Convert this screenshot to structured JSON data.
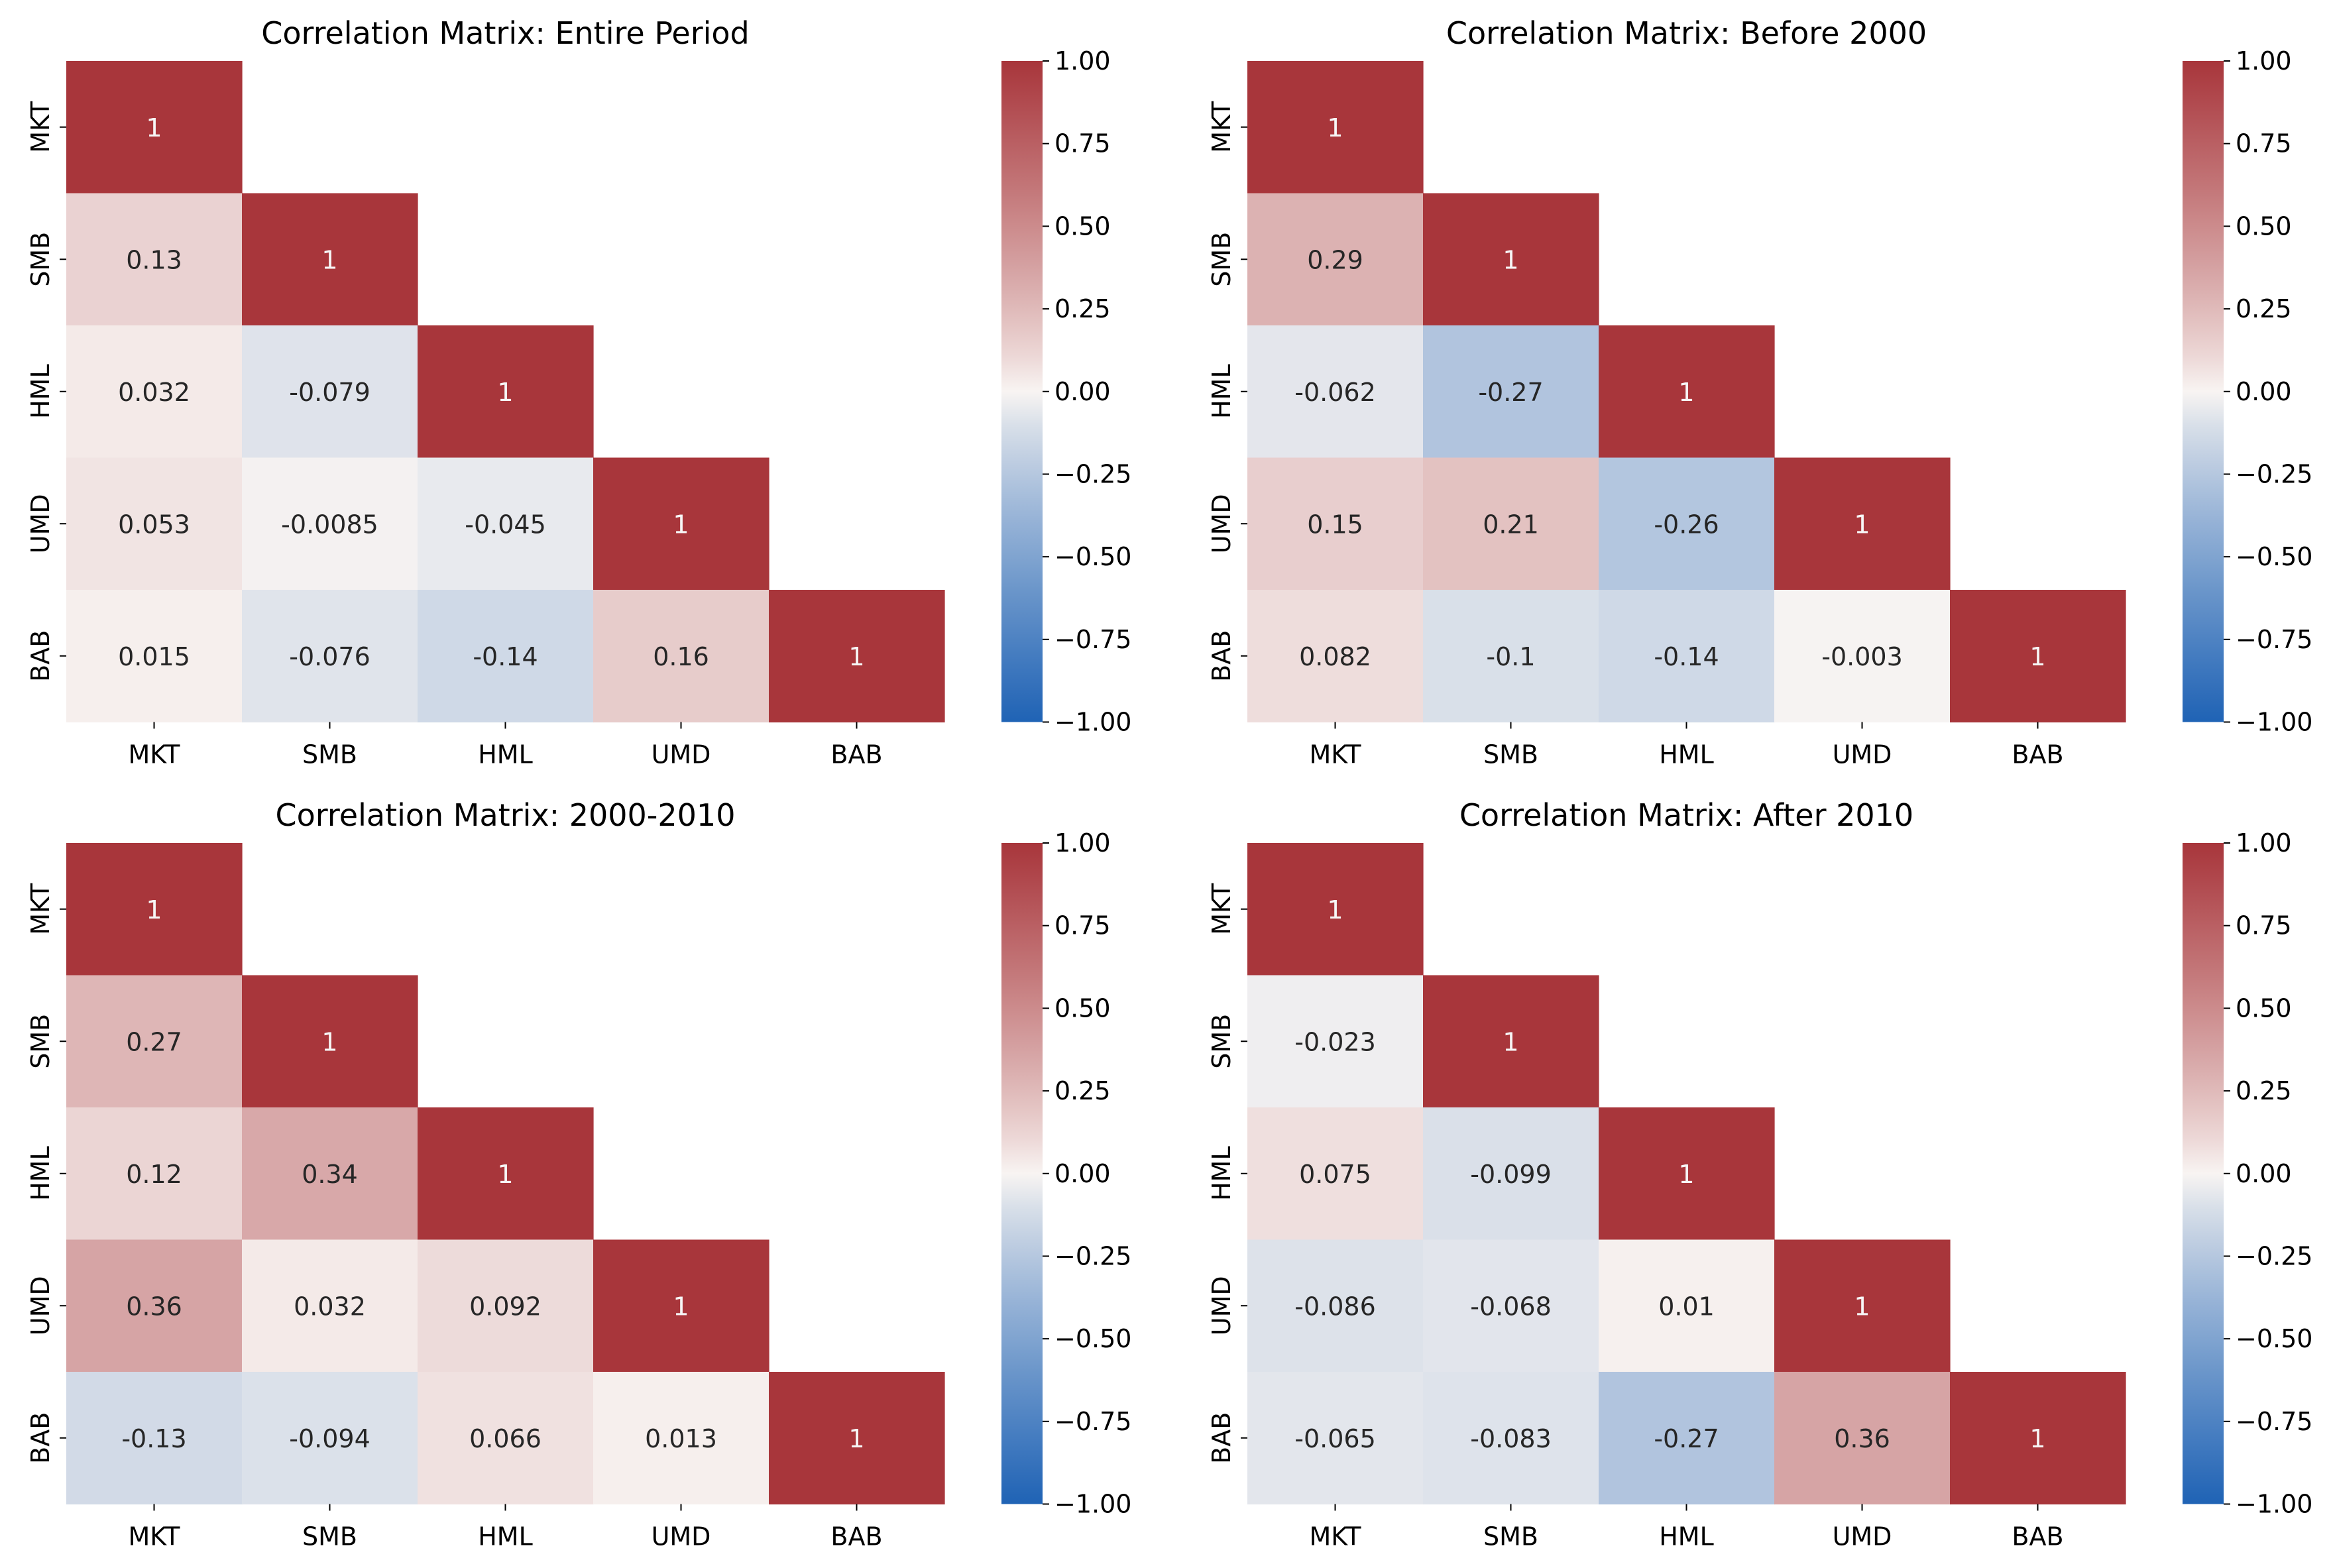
{
  "chart_data": [
    {
      "type": "heatmap",
      "title": "Correlation Matrix: Entire Period",
      "labels": [
        "MKT",
        "SMB",
        "HML",
        "UMD",
        "BAB"
      ],
      "annotations": [
        [
          "1"
        ],
        [
          "0.13",
          "1"
        ],
        [
          "0.032",
          "-0.079",
          "1"
        ],
        [
          "0.053",
          "-0.0085",
          "-0.045",
          "1"
        ],
        [
          "0.015",
          "-0.076",
          "-0.14",
          "0.16",
          "1"
        ]
      ],
      "values": [
        [
          1
        ],
        [
          0.13,
          1
        ],
        [
          0.032,
          -0.079,
          1
        ],
        [
          0.053,
          -0.0085,
          -0.045,
          1
        ],
        [
          0.015,
          -0.076,
          -0.14,
          0.16,
          1
        ]
      ],
      "colorbar": {
        "min": -1,
        "max": 1,
        "ticks": [
          "1.00",
          "0.75",
          "0.50",
          "0.25",
          "0.00",
          "−0.25",
          "−0.50",
          "−0.75",
          "−1.00"
        ]
      }
    },
    {
      "type": "heatmap",
      "title": "Correlation Matrix: Before 2000",
      "labels": [
        "MKT",
        "SMB",
        "HML",
        "UMD",
        "BAB"
      ],
      "annotations": [
        [
          "1"
        ],
        [
          "0.29",
          "1"
        ],
        [
          "-0.062",
          "-0.27",
          "1"
        ],
        [
          "0.15",
          "0.21",
          "-0.26",
          "1"
        ],
        [
          "0.082",
          "-0.1",
          "-0.14",
          "-0.003",
          "1"
        ]
      ],
      "values": [
        [
          1
        ],
        [
          0.29,
          1
        ],
        [
          -0.062,
          -0.27,
          1
        ],
        [
          0.15,
          0.21,
          -0.26,
          1
        ],
        [
          0.082,
          -0.1,
          -0.14,
          -0.003,
          1
        ]
      ],
      "colorbar": {
        "min": -1,
        "max": 1,
        "ticks": [
          "1.00",
          "0.75",
          "0.50",
          "0.25",
          "0.00",
          "−0.25",
          "−0.50",
          "−0.75",
          "−1.00"
        ]
      }
    },
    {
      "type": "heatmap",
      "title": "Correlation Matrix: 2000-2010",
      "labels": [
        "MKT",
        "SMB",
        "HML",
        "UMD",
        "BAB"
      ],
      "annotations": [
        [
          "1"
        ],
        [
          "0.27",
          "1"
        ],
        [
          "0.12",
          "0.34",
          "1"
        ],
        [
          "0.36",
          "0.032",
          "0.092",
          "1"
        ],
        [
          "-0.13",
          "-0.094",
          "0.066",
          "0.013",
          "1"
        ]
      ],
      "values": [
        [
          1
        ],
        [
          0.27,
          1
        ],
        [
          0.12,
          0.34,
          1
        ],
        [
          0.36,
          0.032,
          0.092,
          1
        ],
        [
          -0.13,
          -0.094,
          0.066,
          0.013,
          1
        ]
      ],
      "colorbar": {
        "min": -1,
        "max": 1,
        "ticks": [
          "1.00",
          "0.75",
          "0.50",
          "0.25",
          "0.00",
          "−0.25",
          "−0.50",
          "−0.75",
          "−1.00"
        ]
      }
    },
    {
      "type": "heatmap",
      "title": "Correlation Matrix: After 2010",
      "labels": [
        "MKT",
        "SMB",
        "HML",
        "UMD",
        "BAB"
      ],
      "annotations": [
        [
          "1"
        ],
        [
          "-0.023",
          "1"
        ],
        [
          "0.075",
          "-0.099",
          "1"
        ],
        [
          "-0.086",
          "-0.068",
          "0.01",
          "1"
        ],
        [
          "-0.065",
          "-0.083",
          "-0.27",
          "0.36",
          "1"
        ]
      ],
      "values": [
        [
          1
        ],
        [
          -0.023,
          1
        ],
        [
          0.075,
          -0.099,
          1
        ],
        [
          -0.086,
          -0.068,
          0.01,
          1
        ],
        [
          -0.065,
          -0.083,
          -0.27,
          0.36,
          1
        ]
      ],
      "colorbar": {
        "min": -1,
        "max": 1,
        "ticks": [
          "1.00",
          "0.75",
          "0.50",
          "0.25",
          "0.00",
          "−0.25",
          "−0.50",
          "−0.75",
          "−1.00"
        ]
      }
    }
  ],
  "colors": {
    "negative_end": "#1f63b5",
    "center": "#f8f4f2",
    "positive_end": "#a8363b",
    "text_on_light": "#262626",
    "text_on_dark": "#f7f7f7",
    "axis": "#000000"
  }
}
